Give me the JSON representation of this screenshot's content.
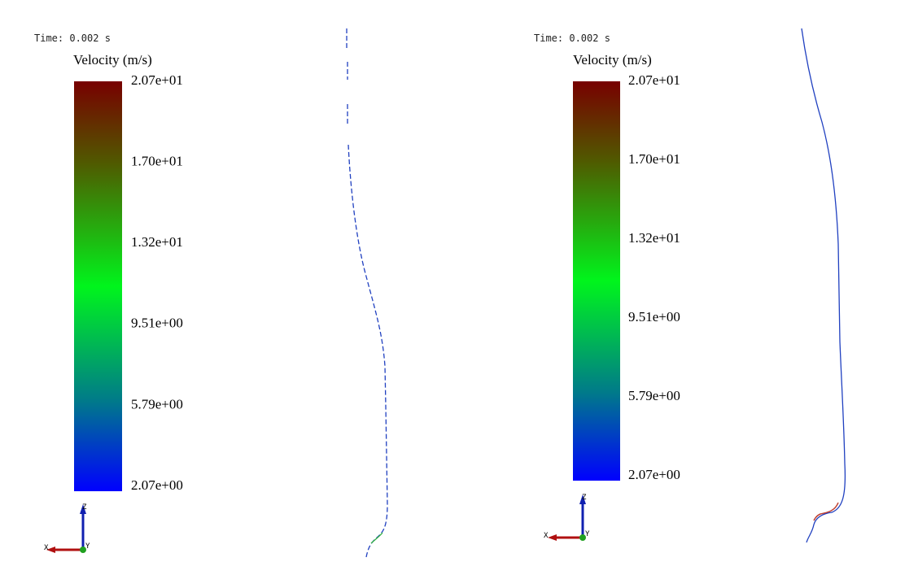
{
  "panels": [
    {
      "time": "Time: 0.002 s",
      "title": "Velocity (m/s)",
      "scale_labels": [
        "2.07e+01",
        "1.70e+01",
        "1.32e+01",
        "9.51e+00",
        "5.79e+00",
        "2.07e+00"
      ],
      "axes": {
        "z": "Z",
        "x": "X",
        "y": "Y"
      }
    },
    {
      "time": "Time: 0.002 s",
      "title": "Velocity (m/s)",
      "scale_labels": [
        "2.07e+01",
        "1.70e+01",
        "1.32e+01",
        "9.51e+00",
        "5.79e+00",
        "2.07e+00"
      ],
      "axes": {
        "z": "Z",
        "x": "X",
        "y": "Y"
      }
    }
  ]
}
